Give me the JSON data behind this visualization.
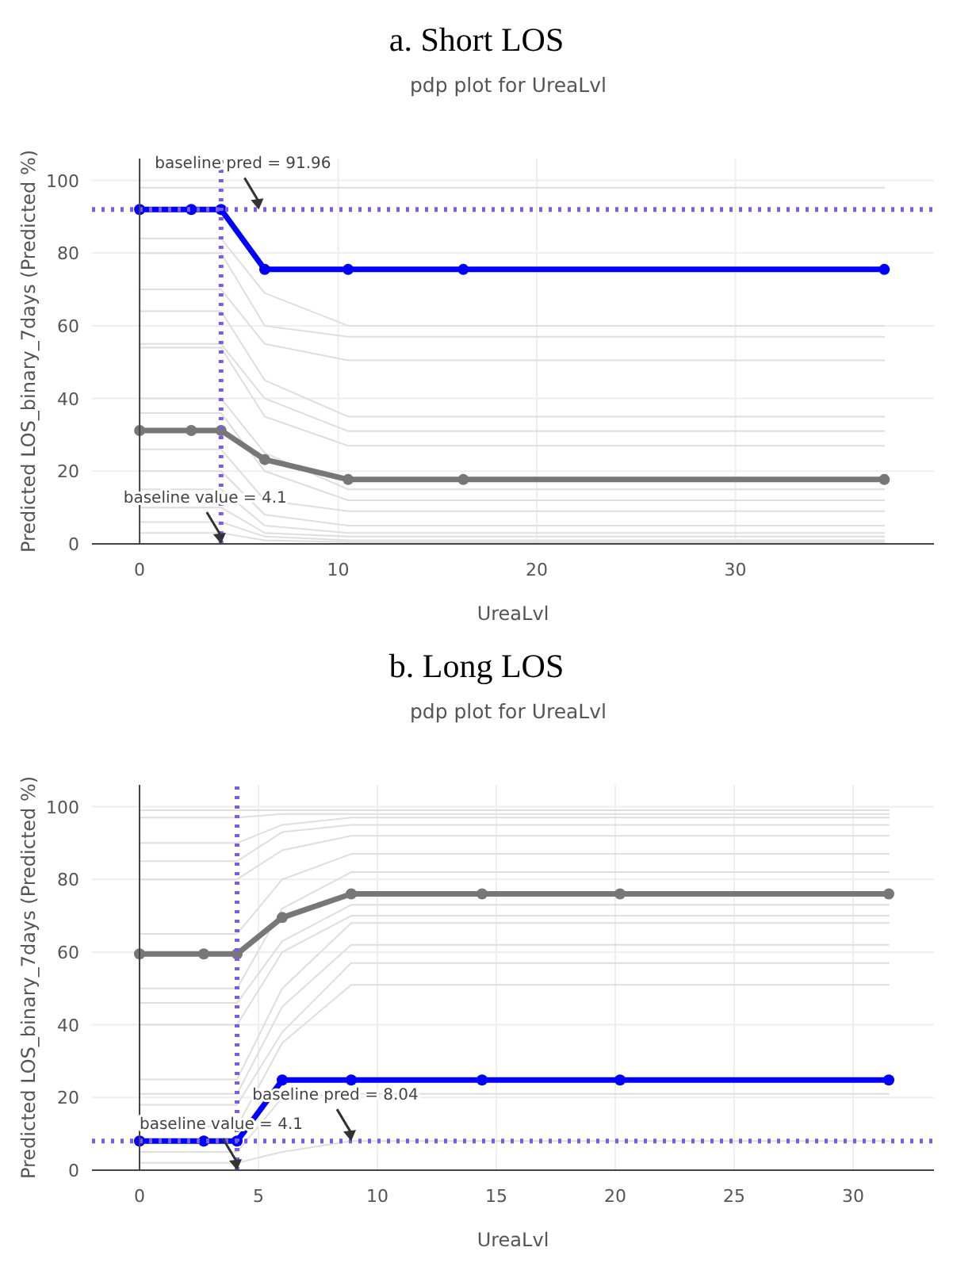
{
  "chart_data": [
    {
      "type": "line",
      "title": "a. Short LOS",
      "subtitle": "pdp plot for UreaLvl",
      "xlabel": "UreaLvl",
      "ylabel": "Predicted LOS_binary_7days (Predicted %)",
      "x": [
        0,
        2.6,
        4.1,
        6.3,
        10.5,
        16.3,
        37.5
      ],
      "xlim": [
        -2.4,
        40
      ],
      "xticks": [
        0,
        10,
        20,
        30
      ],
      "ylim": [
        0,
        106
      ],
      "yticks": [
        0,
        20,
        40,
        60,
        80,
        100
      ],
      "grid": true,
      "series": [
        {
          "color": "#dedede",
          "marker": "none",
          "values": [
            98,
            98,
            98,
            98,
            98,
            98,
            98
          ]
        },
        {
          "color": "#dedede",
          "marker": "none",
          "values": [
            84,
            84,
            84,
            69,
            60,
            60,
            60
          ]
        },
        {
          "color": "#dedede",
          "marker": "none",
          "values": [
            80,
            80,
            80,
            60,
            57,
            57,
            57
          ]
        },
        {
          "color": "#dedede",
          "marker": "none",
          "values": [
            70,
            70,
            70,
            55,
            50.5,
            50.5,
            50.5
          ]
        },
        {
          "color": "#dedede",
          "marker": "none",
          "values": [
            64,
            64,
            64,
            45,
            35,
            35,
            35
          ]
        },
        {
          "color": "#dedede",
          "marker": "none",
          "values": [
            55,
            55,
            55,
            40,
            31,
            31,
            31
          ]
        },
        {
          "color": "#dedede",
          "marker": "none",
          "values": [
            54,
            54,
            54,
            35,
            27,
            27,
            27
          ]
        },
        {
          "color": "#dedede",
          "marker": "none",
          "values": [
            40,
            40,
            40,
            25,
            15,
            15,
            15
          ]
        },
        {
          "color": "#dedede",
          "marker": "none",
          "values": [
            36,
            36,
            36,
            20,
            12,
            12,
            12
          ]
        },
        {
          "color": "#dedede",
          "marker": "none",
          "values": [
            26,
            26,
            26,
            12,
            9,
            9,
            9
          ]
        },
        {
          "color": "#dedede",
          "marker": "none",
          "values": [
            20,
            20,
            20,
            8,
            5,
            5,
            5
          ]
        },
        {
          "color": "#dedede",
          "marker": "none",
          "values": [
            15,
            15,
            15,
            5,
            3,
            3,
            3
          ]
        },
        {
          "color": "#dedede",
          "marker": "none",
          "values": [
            10,
            10,
            10,
            3,
            2,
            2,
            2
          ]
        },
        {
          "color": "#dedede",
          "marker": "none",
          "values": [
            6,
            6,
            6,
            2,
            1,
            1,
            1
          ]
        },
        {
          "color": "#dedede",
          "marker": "none",
          "values": [
            3,
            3,
            3,
            1,
            0.5,
            0.5,
            0.5
          ]
        },
        {
          "color": "#777777",
          "marker": "circle",
          "values": [
            31.2,
            31.2,
            31.2,
            23.2,
            17.7,
            17.7,
            17.7
          ]
        },
        {
          "color": "#0000ff",
          "marker": "circle",
          "values": [
            92,
            92,
            92,
            75.5,
            75.5,
            75.5,
            75.5
          ]
        }
      ],
      "ref_lines": [
        {
          "axis": "y",
          "value": 91.96,
          "color": "#7b5ce6",
          "line_style": "dotted"
        },
        {
          "axis": "x",
          "value": 4.1,
          "color": "#7b5ce6",
          "line_style": "dotted"
        }
      ],
      "annotations": [
        {
          "text": "baseline pred = 91.96",
          "x": 6,
          "y": 91.96
        },
        {
          "text": "baseline value = 4.1",
          "x": 4.1,
          "y": 0
        }
      ]
    },
    {
      "type": "line",
      "title": "b. Long LOS",
      "subtitle": "pdp plot for UreaLvl",
      "xlabel": "UreaLvl",
      "ylabel": "Predicted LOS_binary_7days (Predicted %)",
      "x": [
        0,
        2.7,
        4.1,
        6,
        8.9,
        14.4,
        20.2,
        31.5
      ],
      "xlim": [
        -2,
        33.4
      ],
      "xticks": [
        0,
        5,
        10,
        15,
        20,
        25,
        30
      ],
      "ylim": [
        0,
        106
      ],
      "yticks": [
        0,
        20,
        40,
        60,
        80,
        100
      ],
      "grid": true,
      "series": [
        {
          "color": "#dedede",
          "marker": "none",
          "values": [
            99,
            99,
            99,
            99,
            99,
            99,
            99,
            99
          ]
        },
        {
          "color": "#dedede",
          "marker": "none",
          "values": [
            97,
            97,
            97,
            98,
            98,
            98,
            98,
            98
          ]
        },
        {
          "color": "#dedede",
          "marker": "none",
          "values": [
            90,
            90,
            90,
            95,
            97,
            97,
            97,
            97
          ]
        },
        {
          "color": "#dedede",
          "marker": "none",
          "values": [
            85,
            85,
            85,
            93,
            95,
            95,
            95,
            95
          ]
        },
        {
          "color": "#dedede",
          "marker": "none",
          "values": [
            80,
            80,
            80,
            88,
            92,
            92,
            92,
            92
          ]
        },
        {
          "color": "#dedede",
          "marker": "none",
          "values": [
            65,
            65,
            65,
            80,
            87,
            87,
            87,
            87
          ]
        },
        {
          "color": "#dedede",
          "marker": "none",
          "values": [
            50,
            50,
            50,
            72,
            82,
            82,
            82,
            82
          ]
        },
        {
          "color": "#dedede",
          "marker": "none",
          "values": [
            46,
            46,
            46,
            63,
            73,
            73,
            73,
            73
          ]
        },
        {
          "color": "#dedede",
          "marker": "none",
          "values": [
            40,
            40,
            40,
            60,
            70,
            70,
            70,
            70
          ]
        },
        {
          "color": "#dedede",
          "marker": "none",
          "values": [
            25,
            25,
            25,
            50,
            68,
            68,
            68,
            68
          ]
        },
        {
          "color": "#dedede",
          "marker": "none",
          "values": [
            21,
            21,
            21,
            45,
            62,
            62,
            62,
            62
          ]
        },
        {
          "color": "#dedede",
          "marker": "none",
          "values": [
            18,
            18,
            18,
            38,
            57,
            57,
            57,
            57
          ]
        },
        {
          "color": "#dedede",
          "marker": "none",
          "values": [
            12,
            12,
            12,
            35,
            51,
            51,
            51,
            51
          ]
        },
        {
          "color": "#dedede",
          "marker": "none",
          "values": [
            5,
            5,
            5,
            20,
            21,
            21,
            21,
            21
          ]
        },
        {
          "color": "#dedede",
          "marker": "none",
          "values": [
            2,
            2,
            2,
            5,
            8,
            8,
            8,
            8
          ]
        },
        {
          "color": "#777777",
          "marker": "circle",
          "values": [
            59.5,
            59.5,
            59.5,
            69.5,
            76,
            76,
            76,
            76
          ]
        },
        {
          "color": "#0000ff",
          "marker": "circle",
          "values": [
            8,
            8,
            8,
            24.8,
            24.8,
            24.8,
            24.8,
            24.8
          ]
        }
      ],
      "ref_lines": [
        {
          "axis": "y",
          "value": 8.04,
          "color": "#7b5ce6",
          "line_style": "dotted"
        },
        {
          "axis": "x",
          "value": 4.1,
          "color": "#7b5ce6",
          "line_style": "dotted"
        }
      ],
      "annotations": [
        {
          "text": "baseline pred = 8.04",
          "x": 8.9,
          "y": 8.04
        },
        {
          "text": "baseline value = 4.1",
          "x": 4.1,
          "y": 0
        }
      ]
    }
  ]
}
